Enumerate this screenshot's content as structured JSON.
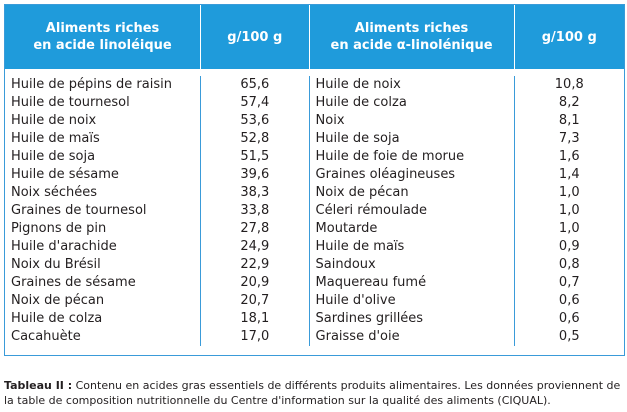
{
  "headers": {
    "col1_line1": "Aliments riches",
    "col1_line2": "en acide linoléique",
    "col2": "g/100 g",
    "col3_line1": "Aliments riches",
    "col3_line2": "en acide α-linolénique",
    "col4": "g/100 g"
  },
  "linoleique": [
    {
      "name": "Huile de pépins de raisin",
      "value": "65,6"
    },
    {
      "name": "Huile de tournesol",
      "value": "57,4"
    },
    {
      "name": "Huile de noix",
      "value": "53,6"
    },
    {
      "name": "Huile de maïs",
      "value": "52,8"
    },
    {
      "name": "Huile de soja",
      "value": "51,5"
    },
    {
      "name": "Huile de sésame",
      "value": "39,6"
    },
    {
      "name": "Noix séchées",
      "value": "38,3"
    },
    {
      "name": "Graines de tournesol",
      "value": "33,8"
    },
    {
      "name": "Pignons de pin",
      "value": "27,8"
    },
    {
      "name": "Huile d'arachide",
      "value": "24,9"
    },
    {
      "name": "Noix du Brésil",
      "value": "22,9"
    },
    {
      "name": "Graines de sésame",
      "value": "20,9"
    },
    {
      "name": "Noix de pécan",
      "value": "20,7"
    },
    {
      "name": "Huile de colza",
      "value": "18,1"
    },
    {
      "name": "Cacahuète",
      "value": "17,0"
    }
  ],
  "linolenique": [
    {
      "name": "Huile de noix",
      "value": "10,8"
    },
    {
      "name": "Huile de colza",
      "value": "8,2"
    },
    {
      "name": "Noix",
      "value": "8,1"
    },
    {
      "name": "Huile de soja",
      "value": "7,3"
    },
    {
      "name": "Huile de foie de morue",
      "value": "1,6"
    },
    {
      "name": "Graines oléagineuses",
      "value": "1,4"
    },
    {
      "name": "Noix de pécan",
      "value": "1,0"
    },
    {
      "name": "Céleri rémoulade",
      "value": "1,0"
    },
    {
      "name": "Moutarde",
      "value": "1,0"
    },
    {
      "name": "Huile de maïs",
      "value": "0,9"
    },
    {
      "name": "Saindoux",
      "value": "0,8"
    },
    {
      "name": "Maquereau fumé",
      "value": "0,7"
    },
    {
      "name": "Huile d'olive",
      "value": "0,6"
    },
    {
      "name": "Sardines grillées",
      "value": "0,6"
    },
    {
      "name": "Graisse d'oie",
      "value": "0,5"
    }
  ],
  "caption": {
    "label": "Tableau II :",
    "text": " Contenu en acides gras essentiels de différents produits alimentaires. Les données proviennent de la table de composition nutritionnelle du Centre d'information sur la qualité des aliments (CIQUAL)."
  }
}
